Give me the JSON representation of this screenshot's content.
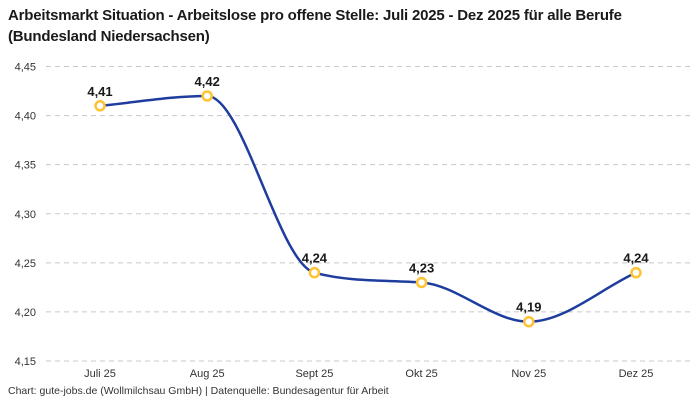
{
  "header": {
    "title": "Arbeitsmarkt Situation - Arbeitslose pro offene Stelle: Juli 2025 - Dez 2025 für alle Berufe (Bundesland Niedersachsen)"
  },
  "footer": {
    "credit": "Chart: gute-jobs.de (Wollmilchsau GmbH) | Datenquelle: Bundesagentur für Arbeit"
  },
  "chart_data": {
    "type": "line",
    "title": "Arbeitsmarkt Situation - Arbeitslose pro offene Stelle: Juli 2025 - Dez 2025 für alle Berufe (Bundesland Niedersachsen)",
    "categories": [
      "Juli 25",
      "Aug 25",
      "Sept 25",
      "Okt 25",
      "Nov 25",
      "Dez 25"
    ],
    "values": [
      4.41,
      4.42,
      4.24,
      4.23,
      4.19,
      4.24
    ],
    "point_labels": [
      "4,41",
      "4,42",
      "4,24",
      "4,23",
      "4,19",
      "4,24"
    ],
    "y_tick_labels": [
      "4,45",
      "4,40",
      "4,35",
      "4,30",
      "4,25",
      "4,20",
      "4,15"
    ],
    "y_tick_values": [
      4.45,
      4.4,
      4.35,
      4.3,
      4.25,
      4.2,
      4.15
    ],
    "ylim": [
      4.15,
      4.45
    ],
    "xlabel": "",
    "ylabel": "",
    "grid": "horizontal-dashed",
    "legend": "none",
    "colors": {
      "line": "#1f3d9e",
      "marker_stroke": "#ffc233",
      "marker_fill": "#ffffff",
      "grid": "#c8c8c8",
      "title_text": "#1a1a1a",
      "axis_text": "#333333"
    }
  }
}
